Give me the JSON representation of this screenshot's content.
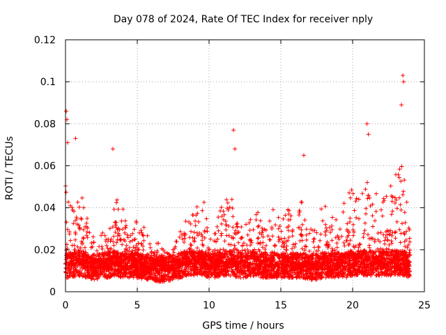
{
  "chart_data": {
    "type": "scatter",
    "title": "Day 078 of 2024, Rate Of TEC Index for receiver nply",
    "xlabel": "GPS time / hours",
    "ylabel": "ROTI / TECUs",
    "xlim": [
      0,
      25
    ],
    "ylim": [
      0,
      0.12
    ],
    "xticks": [
      0,
      5,
      10,
      15,
      20,
      25
    ],
    "xtick_labels": [
      "0",
      "5",
      "10",
      "15",
      "20",
      "25"
    ],
    "yticks": [
      0,
      0.02,
      0.04,
      0.06,
      0.08,
      0.1,
      0.12
    ],
    "ytick_labels": [
      "0",
      "0.02",
      "0.04",
      "0.06",
      "0.08",
      "0.1",
      "0.12"
    ],
    "grid": true,
    "marker": "+",
    "marker_color": "#ff0000",
    "x_range_of_data": [
      0,
      24
    ],
    "envelope": {
      "hours": [
        0,
        0.5,
        1,
        1.5,
        2,
        2.5,
        3,
        3.5,
        4,
        4.5,
        5,
        5.5,
        6,
        6.5,
        7,
        7.5,
        8,
        8.5,
        9,
        9.5,
        10,
        10.5,
        11,
        11.5,
        12,
        12.5,
        13,
        13.5,
        14,
        14.5,
        15,
        15.5,
        16,
        16.5,
        17,
        17.5,
        18,
        18.5,
        19,
        19.5,
        20,
        20.5,
        21,
        21.5,
        22,
        22.5,
        23,
        23.5,
        24
      ],
      "typical_max": [
        0.055,
        0.04,
        0.05,
        0.035,
        0.025,
        0.028,
        0.03,
        0.045,
        0.04,
        0.03,
        0.035,
        0.032,
        0.02,
        0.025,
        0.018,
        0.022,
        0.03,
        0.035,
        0.04,
        0.05,
        0.035,
        0.03,
        0.05,
        0.045,
        0.04,
        0.035,
        0.04,
        0.038,
        0.035,
        0.04,
        0.035,
        0.04,
        0.035,
        0.045,
        0.03,
        0.03,
        0.045,
        0.04,
        0.035,
        0.045,
        0.05,
        0.045,
        0.055,
        0.05,
        0.045,
        0.05,
        0.06,
        0.06,
        0.03
      ],
      "baseline": [
        0.012,
        0.012,
        0.013,
        0.012,
        0.011,
        0.012,
        0.012,
        0.013,
        0.012,
        0.012,
        0.012,
        0.011,
        0.011,
        0.01,
        0.01,
        0.011,
        0.012,
        0.013,
        0.013,
        0.013,
        0.012,
        0.012,
        0.013,
        0.013,
        0.012,
        0.012,
        0.013,
        0.012,
        0.012,
        0.012,
        0.012,
        0.012,
        0.012,
        0.012,
        0.011,
        0.011,
        0.012,
        0.012,
        0.012,
        0.012,
        0.013,
        0.013,
        0.013,
        0.013,
        0.013,
        0.013,
        0.013,
        0.013,
        0.012
      ]
    },
    "notable_points": [
      {
        "x": 0.05,
        "y": 0.086
      },
      {
        "x": 0.1,
        "y": 0.082
      },
      {
        "x": 0.15,
        "y": 0.071
      },
      {
        "x": 0.7,
        "y": 0.073
      },
      {
        "x": 3.3,
        "y": 0.068
      },
      {
        "x": 11.7,
        "y": 0.077
      },
      {
        "x": 11.8,
        "y": 0.068
      },
      {
        "x": 16.6,
        "y": 0.065
      },
      {
        "x": 21.0,
        "y": 0.08
      },
      {
        "x": 21.1,
        "y": 0.075
      },
      {
        "x": 23.5,
        "y": 0.103
      },
      {
        "x": 23.55,
        "y": 0.1
      },
      {
        "x": 23.4,
        "y": 0.089
      }
    ]
  }
}
